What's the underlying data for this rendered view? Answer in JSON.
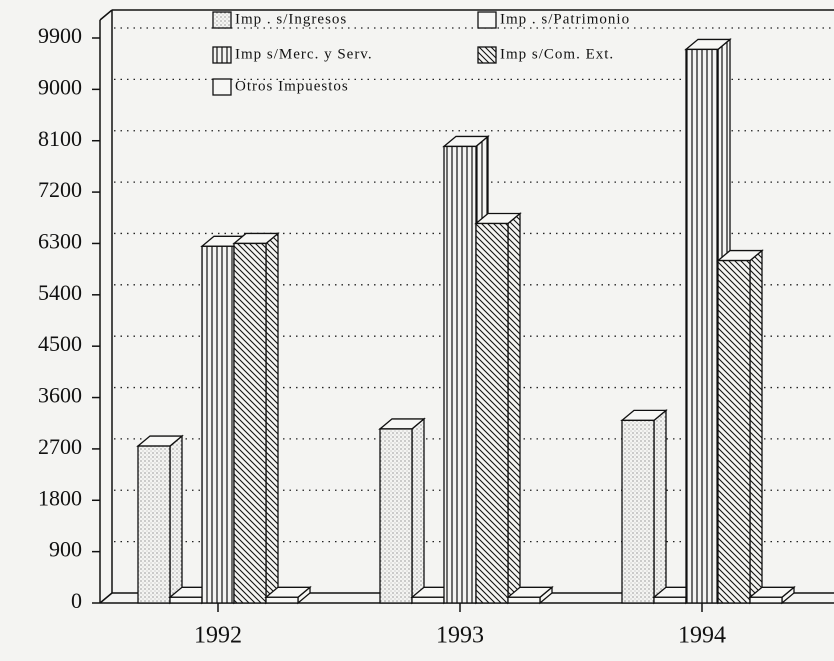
{
  "chart_data": {
    "type": "bar3d",
    "categories": [
      "1992",
      "1993",
      "1994"
    ],
    "series": [
      {
        "name": "Imp . s/Ingresos",
        "pattern": "dots",
        "values": [
          2750,
          3050,
          3200
        ]
      },
      {
        "name": "Imp . s/Patrimonio",
        "pattern": "none",
        "values": [
          100,
          100,
          100
        ]
      },
      {
        "name": "Imp s/Merc. y Serv.",
        "pattern": "vlines",
        "values": [
          6250,
          8000,
          9700
        ]
      },
      {
        "name": "Imp s/Com. Ext.",
        "pattern": "diag",
        "values": [
          6300,
          6650,
          6000
        ]
      },
      {
        "name": "Otros Impuestos",
        "pattern": "none",
        "values": [
          100,
          100,
          100
        ]
      }
    ],
    "ylim": [
      0,
      9900
    ],
    "yticks": [
      0,
      900,
      1800,
      2700,
      3600,
      4500,
      5400,
      6300,
      7200,
      8100,
      9000,
      9900
    ],
    "grid": true
  }
}
